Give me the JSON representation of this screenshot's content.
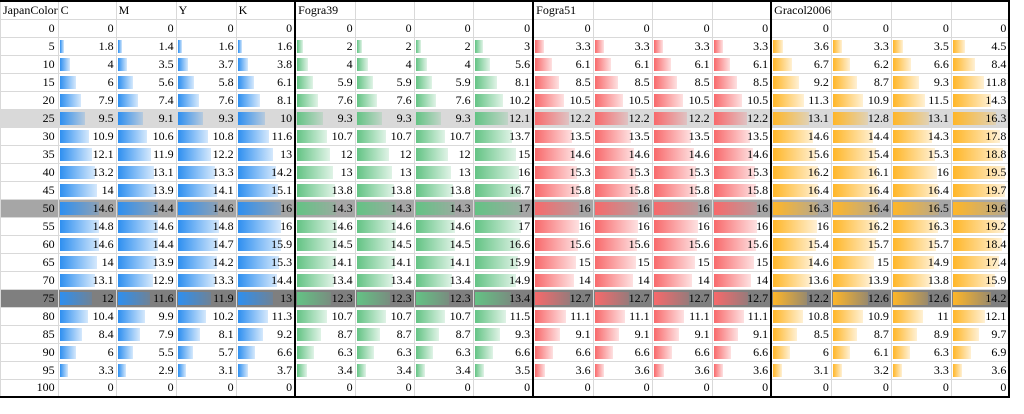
{
  "header": {
    "step_col": "JapanColor",
    "japancolor_cols": [
      "C",
      "M",
      "Y",
      "K"
    ],
    "fogra39": "Fogra39",
    "fogra51": "Fogra51",
    "gracol": "Gracol2006"
  },
  "colors": {
    "japancolor_bar": "#2e8ff0",
    "fogra39_bar": "#63c384",
    "fogra51_bar": "#f8696b",
    "gracol_bar": "#ffb628",
    "grid": "#d9d9d9",
    "shade_light": "#d9d9d9",
    "shade_mid": "#a6a6a6",
    "shade_dark": "#7f7f7f"
  },
  "scale_max": 20,
  "rows": [
    {
      "step": "0",
      "shade": "",
      "japancolor": [
        "0",
        "0",
        "0",
        "0"
      ],
      "fogra39": [
        "0",
        "0",
        "0",
        "0"
      ],
      "fogra51": [
        "0",
        "0",
        "0",
        "0"
      ],
      "gracol": [
        "0",
        "0",
        "0",
        "0"
      ]
    },
    {
      "step": "5",
      "shade": "",
      "japancolor": [
        "1.8",
        "1.4",
        "1.6",
        "1.6"
      ],
      "fogra39": [
        "2",
        "2",
        "2",
        "3"
      ],
      "fogra51": [
        "3.3",
        "3.3",
        "3.3",
        "3.3"
      ],
      "gracol": [
        "3.6",
        "3.3",
        "3.5",
        "4.5"
      ]
    },
    {
      "step": "10",
      "shade": "",
      "japancolor": [
        "4",
        "3.5",
        "3.7",
        "3.8"
      ],
      "fogra39": [
        "4",
        "4",
        "4",
        "5.6"
      ],
      "fogra51": [
        "6.1",
        "6.1",
        "6.1",
        "6.1"
      ],
      "gracol": [
        "6.7",
        "6.2",
        "6.6",
        "8.4"
      ]
    },
    {
      "step": "15",
      "shade": "",
      "japancolor": [
        "6",
        "5.6",
        "5.8",
        "6.1"
      ],
      "fogra39": [
        "5.9",
        "5.9",
        "5.9",
        "8.1"
      ],
      "fogra51": [
        "8.5",
        "8.5",
        "8.5",
        "8.5"
      ],
      "gracol": [
        "9.2",
        "8.7",
        "9.3",
        "11.8"
      ]
    },
    {
      "step": "20",
      "shade": "",
      "japancolor": [
        "7.9",
        "7.4",
        "7.6",
        "8.1"
      ],
      "fogra39": [
        "7.6",
        "7.6",
        "7.6",
        "10.2"
      ],
      "fogra51": [
        "10.5",
        "10.5",
        "10.5",
        "10.5"
      ],
      "gracol": [
        "11.3",
        "10.9",
        "11.5",
        "14.3"
      ]
    },
    {
      "step": "25",
      "shade": "light",
      "japancolor": [
        "9.5",
        "9.1",
        "9.3",
        "10"
      ],
      "fogra39": [
        "9.3",
        "9.3",
        "9.3",
        "12.1"
      ],
      "fogra51": [
        "12.2",
        "12.2",
        "12.2",
        "12.2"
      ],
      "gracol": [
        "13.1",
        "12.8",
        "13.1",
        "16.3"
      ]
    },
    {
      "step": "30",
      "shade": "",
      "japancolor": [
        "10.9",
        "10.6",
        "10.8",
        "11.6"
      ],
      "fogra39": [
        "10.7",
        "10.7",
        "10.7",
        "13.7"
      ],
      "fogra51": [
        "13.5",
        "13.5",
        "13.5",
        "13.5"
      ],
      "gracol": [
        "14.6",
        "14.4",
        "14.3",
        "17.8"
      ]
    },
    {
      "step": "35",
      "shade": "",
      "japancolor": [
        "12.1",
        "11.9",
        "12.2",
        "13"
      ],
      "fogra39": [
        "12",
        "12",
        "12",
        "15"
      ],
      "fogra51": [
        "14.6",
        "14.6",
        "14.6",
        "14.6"
      ],
      "gracol": [
        "15.6",
        "15.4",
        "15.3",
        "18.8"
      ]
    },
    {
      "step": "40",
      "shade": "",
      "japancolor": [
        "13.2",
        "13.1",
        "13.3",
        "14.2"
      ],
      "fogra39": [
        "13",
        "13",
        "13",
        "16"
      ],
      "fogra51": [
        "15.3",
        "15.3",
        "15.3",
        "15.3"
      ],
      "gracol": [
        "16.2",
        "16.1",
        "16",
        "19.5"
      ]
    },
    {
      "step": "45",
      "shade": "",
      "japancolor": [
        "14",
        "13.9",
        "14.1",
        "15.1"
      ],
      "fogra39": [
        "13.8",
        "13.8",
        "13.8",
        "16.7"
      ],
      "fogra51": [
        "15.8",
        "15.8",
        "15.8",
        "15.8"
      ],
      "gracol": [
        "16.4",
        "16.4",
        "16.4",
        "19.7"
      ]
    },
    {
      "step": "50",
      "shade": "mid",
      "japancolor": [
        "14.6",
        "14.4",
        "14.6",
        "16"
      ],
      "fogra39": [
        "14.3",
        "14.3",
        "14.3",
        "17"
      ],
      "fogra51": [
        "16",
        "16",
        "16",
        "16"
      ],
      "gracol": [
        "16.3",
        "16.4",
        "16.5",
        "19.6"
      ]
    },
    {
      "step": "55",
      "shade": "",
      "japancolor": [
        "14.8",
        "14.6",
        "14.8",
        "16"
      ],
      "fogra39": [
        "14.6",
        "14.6",
        "14.6",
        "17"
      ],
      "fogra51": [
        "16",
        "16",
        "16",
        "16"
      ],
      "gracol": [
        "16",
        "16.2",
        "16.3",
        "19.2"
      ]
    },
    {
      "step": "60",
      "shade": "",
      "japancolor": [
        "14.6",
        "14.4",
        "14.7",
        "15.9"
      ],
      "fogra39": [
        "14.5",
        "14.5",
        "14.5",
        "16.6"
      ],
      "fogra51": [
        "15.6",
        "15.6",
        "15.6",
        "15.6"
      ],
      "gracol": [
        "15.4",
        "15.7",
        "15.7",
        "18.4"
      ]
    },
    {
      "step": "65",
      "shade": "",
      "japancolor": [
        "14",
        "13.9",
        "14.2",
        "15.3"
      ],
      "fogra39": [
        "14.1",
        "14.1",
        "14.1",
        "15.9"
      ],
      "fogra51": [
        "15",
        "15",
        "15",
        "15"
      ],
      "gracol": [
        "14.6",
        "15",
        "14.9",
        "17.4"
      ]
    },
    {
      "step": "70",
      "shade": "",
      "japancolor": [
        "13.1",
        "12.9",
        "13.3",
        "14.4"
      ],
      "fogra39": [
        "13.4",
        "13.4",
        "13.4",
        "14.9"
      ],
      "fogra51": [
        "14",
        "14",
        "14",
        "14"
      ],
      "gracol": [
        "13.6",
        "13.9",
        "13.8",
        "15.9"
      ]
    },
    {
      "step": "75",
      "shade": "dark",
      "japancolor": [
        "12",
        "11.6",
        "11.9",
        "13"
      ],
      "fogra39": [
        "12.3",
        "12.3",
        "12.3",
        "13.4"
      ],
      "fogra51": [
        "12.7",
        "12.7",
        "12.7",
        "12.7"
      ],
      "gracol": [
        "12.2",
        "12.6",
        "12.6",
        "14.2"
      ]
    },
    {
      "step": "80",
      "shade": "",
      "japancolor": [
        "10.4",
        "9.9",
        "10.2",
        "11.3"
      ],
      "fogra39": [
        "10.7",
        "10.7",
        "10.7",
        "11.5"
      ],
      "fogra51": [
        "11.1",
        "11.1",
        "11.1",
        "11.1"
      ],
      "gracol": [
        "10.8",
        "10.9",
        "11",
        "12.1"
      ]
    },
    {
      "step": "85",
      "shade": "",
      "japancolor": [
        "8.4",
        "7.9",
        "8.1",
        "9.2"
      ],
      "fogra39": [
        "8.7",
        "8.7",
        "8.7",
        "9.3"
      ],
      "fogra51": [
        "9.1",
        "9.1",
        "9.1",
        "9.1"
      ],
      "gracol": [
        "8.5",
        "8.7",
        "8.9",
        "9.7"
      ]
    },
    {
      "step": "90",
      "shade": "",
      "japancolor": [
        "6",
        "5.5",
        "5.7",
        "6.6"
      ],
      "fogra39": [
        "6.3",
        "6.3",
        "6.3",
        "6.6"
      ],
      "fogra51": [
        "6.6",
        "6.6",
        "6.6",
        "6.6"
      ],
      "gracol": [
        "6",
        "6.1",
        "6.3",
        "6.9"
      ]
    },
    {
      "step": "95",
      "shade": "",
      "japancolor": [
        "3.3",
        "2.9",
        "3.1",
        "3.7"
      ],
      "fogra39": [
        "3.4",
        "3.4",
        "3.4",
        "3.5"
      ],
      "fogra51": [
        "3.6",
        "3.6",
        "3.6",
        "3.6"
      ],
      "gracol": [
        "3.1",
        "3.2",
        "3.3",
        "3.6"
      ]
    },
    {
      "step": "100",
      "shade": "",
      "japancolor": [
        "0",
        "0",
        "0",
        "0"
      ],
      "fogra39": [
        "0",
        "0",
        "0",
        "0"
      ],
      "fogra51": [
        "0",
        "0",
        "0",
        "0"
      ],
      "gracol": [
        "0",
        "0",
        "0",
        "0"
      ]
    }
  ]
}
